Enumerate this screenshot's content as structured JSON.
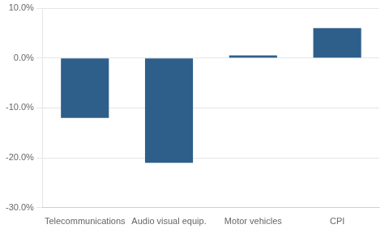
{
  "chart_data": {
    "type": "bar",
    "categories": [
      "Telecommunications",
      "Audio visual equip.",
      "Motor vehicles",
      "CPI"
    ],
    "values": [
      -12.0,
      -21.0,
      0.5,
      6.0
    ],
    "color": "#2E5F8A",
    "ylim": [
      -30,
      10
    ],
    "yticks": [
      {
        "value": -30,
        "label": "-30.0%"
      },
      {
        "value": -20,
        "label": "-20.0%"
      },
      {
        "value": -10,
        "label": "-10.0%"
      },
      {
        "value": 0,
        "label": "0.0%"
      },
      {
        "value": 10,
        "label": "10.0%"
      }
    ],
    "grid": true
  }
}
